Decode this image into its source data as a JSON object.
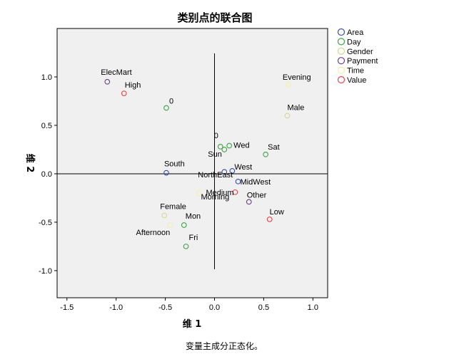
{
  "chart_data": {
    "type": "scatter",
    "title": "类别点的联合图",
    "xlabel": "维 1",
    "ylabel": "维 2",
    "xlim": [
      -1.6,
      1.15
    ],
    "ylim": [
      -1.28,
      1.5
    ],
    "xticks": [
      "-1.5",
      "-1.0",
      "-0.5",
      "0.0",
      "0.5",
      "1.0"
    ],
    "yticks": [
      "-1.0",
      "-0.5",
      "0.0",
      "0.5",
      "1.0"
    ],
    "xtick_values": [
      -1.5,
      -1.0,
      -0.5,
      0.0,
      0.5,
      1.0
    ],
    "ytick_values": [
      -1.0,
      -0.5,
      0.0,
      0.5,
      1.0
    ],
    "grid": false,
    "legend_position": "right",
    "footnote": "变量主成分正态化。",
    "series": [
      {
        "name": "Area",
        "color": "#3a4fa8",
        "points": [
          {
            "label": "South",
            "x": -0.49,
            "y": 0.01
          },
          {
            "label": "West",
            "x": 0.18,
            "y": 0.03
          },
          {
            "label": "MidWest",
            "x": 0.24,
            "y": -0.08
          },
          {
            "label": "NorthEast",
            "x": 0.1,
            "y": 0.02
          }
        ]
      },
      {
        "name": "Day",
        "color": "#3aa645",
        "points": [
          {
            "label": "0",
            "x": -0.49,
            "y": 0.68
          },
          {
            "label": "0",
            "x": 0.06,
            "y": 0.28
          },
          {
            "label": "Sun",
            "x": 0.1,
            "y": 0.25
          },
          {
            "label": "Wed",
            "x": 0.15,
            "y": 0.29
          },
          {
            "label": "Sat",
            "x": 0.52,
            "y": 0.2
          },
          {
            "label": "Mon",
            "x": -0.31,
            "y": -0.53
          },
          {
            "label": "Fri",
            "x": -0.29,
            "y": -0.75
          }
        ]
      },
      {
        "name": "Gender",
        "color": "#d8d98a",
        "points": [
          {
            "label": "Male",
            "x": 0.74,
            "y": 0.6
          },
          {
            "label": "Female",
            "x": -0.51,
            "y": -0.43
          }
        ]
      },
      {
        "name": "Payment",
        "color": "#6a3f86",
        "points": [
          {
            "label": "ElecMart",
            "x": -1.09,
            "y": 0.95
          },
          {
            "label": "Other",
            "x": 0.35,
            "y": -0.29
          }
        ]
      },
      {
        "name": "Time",
        "color": "#f5f0a6",
        "points": [
          {
            "label": "Evening",
            "x": 0.75,
            "y": 0.92
          },
          {
            "label": "Afternoon",
            "x": -0.45,
            "y": -0.53
          },
          {
            "label": "Morning",
            "x": -0.16,
            "y": -0.2
          }
        ]
      },
      {
        "name": "Value",
        "color": "#e0474c",
        "points": [
          {
            "label": "High",
            "x": -0.92,
            "y": 0.83
          },
          {
            "label": "Medium",
            "x": 0.21,
            "y": -0.19
          },
          {
            "label": "Low",
            "x": 0.56,
            "y": -0.47
          }
        ]
      }
    ]
  }
}
